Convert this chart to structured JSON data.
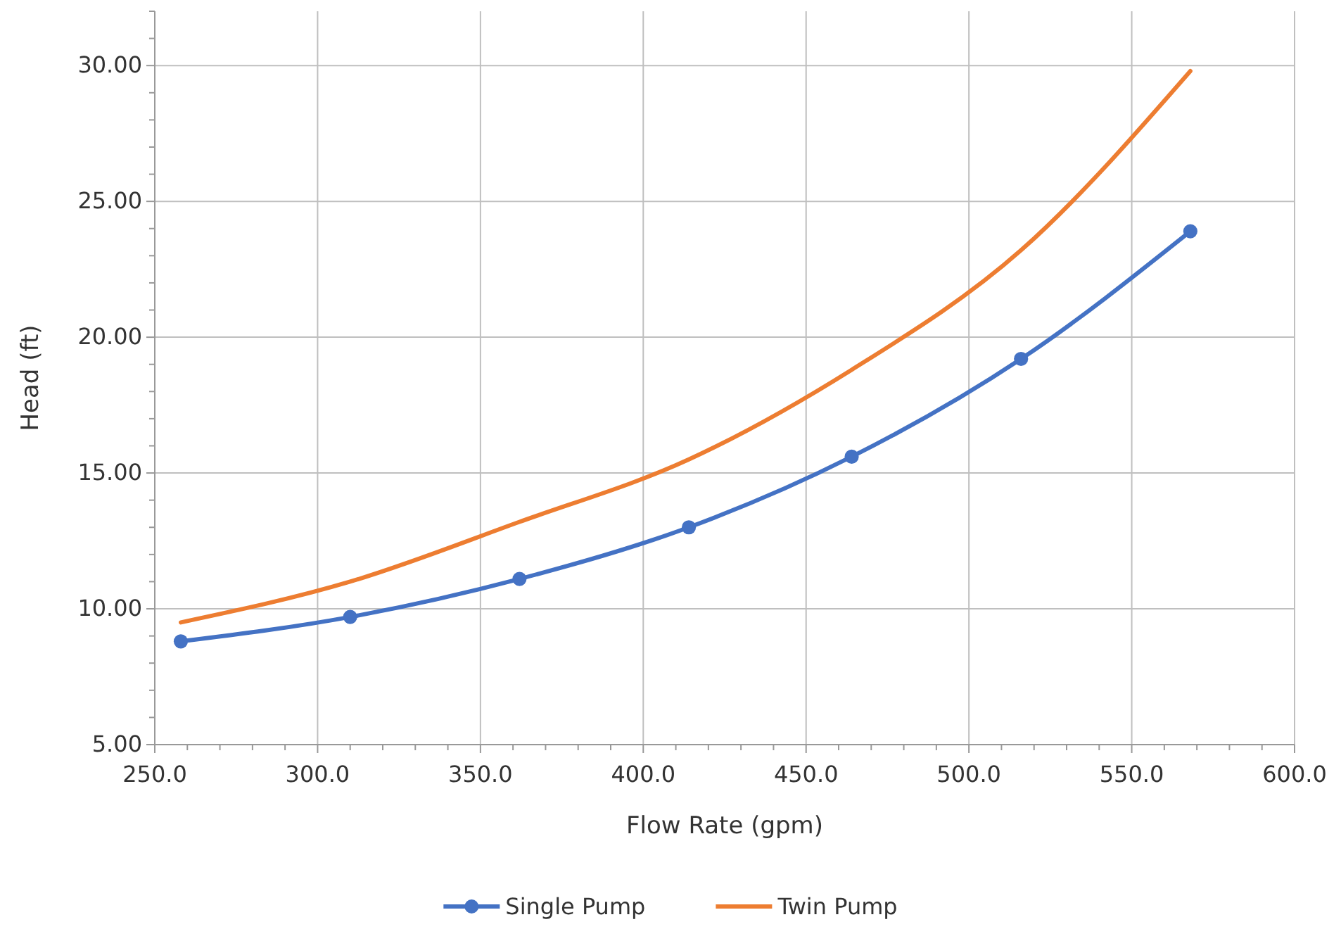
{
  "chart_data": {
    "type": "line",
    "xlabel": "Flow Rate (gpm)",
    "ylabel": "Head (ft)",
    "xlim": [
      250,
      600
    ],
    "ylim": [
      5,
      32
    ],
    "xticks": [
      {
        "value": 250,
        "label": "250.0"
      },
      {
        "value": 260,
        "label": null
      },
      {
        "value": 270,
        "label": null
      },
      {
        "value": 280,
        "label": null
      },
      {
        "value": 290,
        "label": null
      },
      {
        "value": 300,
        "label": "300.0"
      },
      {
        "value": 310,
        "label": null
      },
      {
        "value": 320,
        "label": null
      },
      {
        "value": 330,
        "label": null
      },
      {
        "value": 340,
        "label": null
      },
      {
        "value": 350,
        "label": "350.0"
      },
      {
        "value": 360,
        "label": null
      },
      {
        "value": 370,
        "label": null
      },
      {
        "value": 380,
        "label": null
      },
      {
        "value": 390,
        "label": null
      },
      {
        "value": 400,
        "label": "400.0"
      },
      {
        "value": 410,
        "label": null
      },
      {
        "value": 420,
        "label": null
      },
      {
        "value": 430,
        "label": null
      },
      {
        "value": 440,
        "label": null
      },
      {
        "value": 450,
        "label": "450.0"
      },
      {
        "value": 460,
        "label": null
      },
      {
        "value": 470,
        "label": null
      },
      {
        "value": 480,
        "label": null
      },
      {
        "value": 490,
        "label": null
      },
      {
        "value": 500,
        "label": "500.0"
      },
      {
        "value": 510,
        "label": null
      },
      {
        "value": 520,
        "label": null
      },
      {
        "value": 530,
        "label": null
      },
      {
        "value": 540,
        "label": null
      },
      {
        "value": 550,
        "label": "550.0"
      },
      {
        "value": 560,
        "label": null
      },
      {
        "value": 570,
        "label": null
      },
      {
        "value": 580,
        "label": null
      },
      {
        "value": 590,
        "label": null
      },
      {
        "value": 600,
        "label": "600.0"
      }
    ],
    "yticks": [
      {
        "value": 5,
        "label": "5.00"
      },
      {
        "value": 6,
        "label": null
      },
      {
        "value": 7,
        "label": null
      },
      {
        "value": 8,
        "label": null
      },
      {
        "value": 9,
        "label": null
      },
      {
        "value": 10,
        "label": "10.00"
      },
      {
        "value": 11,
        "label": null
      },
      {
        "value": 12,
        "label": null
      },
      {
        "value": 13,
        "label": null
      },
      {
        "value": 14,
        "label": null
      },
      {
        "value": 15,
        "label": "15.00"
      },
      {
        "value": 16,
        "label": null
      },
      {
        "value": 17,
        "label": null
      },
      {
        "value": 18,
        "label": null
      },
      {
        "value": 19,
        "label": null
      },
      {
        "value": 20,
        "label": "20.00"
      },
      {
        "value": 21,
        "label": null
      },
      {
        "value": 22,
        "label": null
      },
      {
        "value": 23,
        "label": null
      },
      {
        "value": 24,
        "label": null
      },
      {
        "value": 25,
        "label": "25.00"
      },
      {
        "value": 26,
        "label": null
      },
      {
        "value": 27,
        "label": null
      },
      {
        "value": 28,
        "label": null
      },
      {
        "value": 29,
        "label": null
      },
      {
        "value": 30,
        "label": "30.00"
      },
      {
        "value": 31,
        "label": null
      },
      {
        "value": 32,
        "label": null
      }
    ],
    "grid": true,
    "legend": "bottom",
    "line_style": "solid",
    "series": [
      {
        "name": "Single Pump",
        "color": "#4472c4",
        "marker": "circle",
        "x": [
          258,
          310,
          362,
          414,
          464,
          516,
          568
        ],
        "values": [
          8.8,
          9.7,
          11.1,
          13.0,
          15.6,
          19.2,
          23.9
        ]
      },
      {
        "name": "Twin Pump",
        "color": "#ed7d31",
        "marker": "none",
        "x": [
          258,
          310,
          362,
          414,
          464,
          516,
          568
        ],
        "values": [
          9.5,
          11.0,
          13.2,
          15.5,
          18.8,
          23.2,
          29.8
        ]
      }
    ]
  }
}
